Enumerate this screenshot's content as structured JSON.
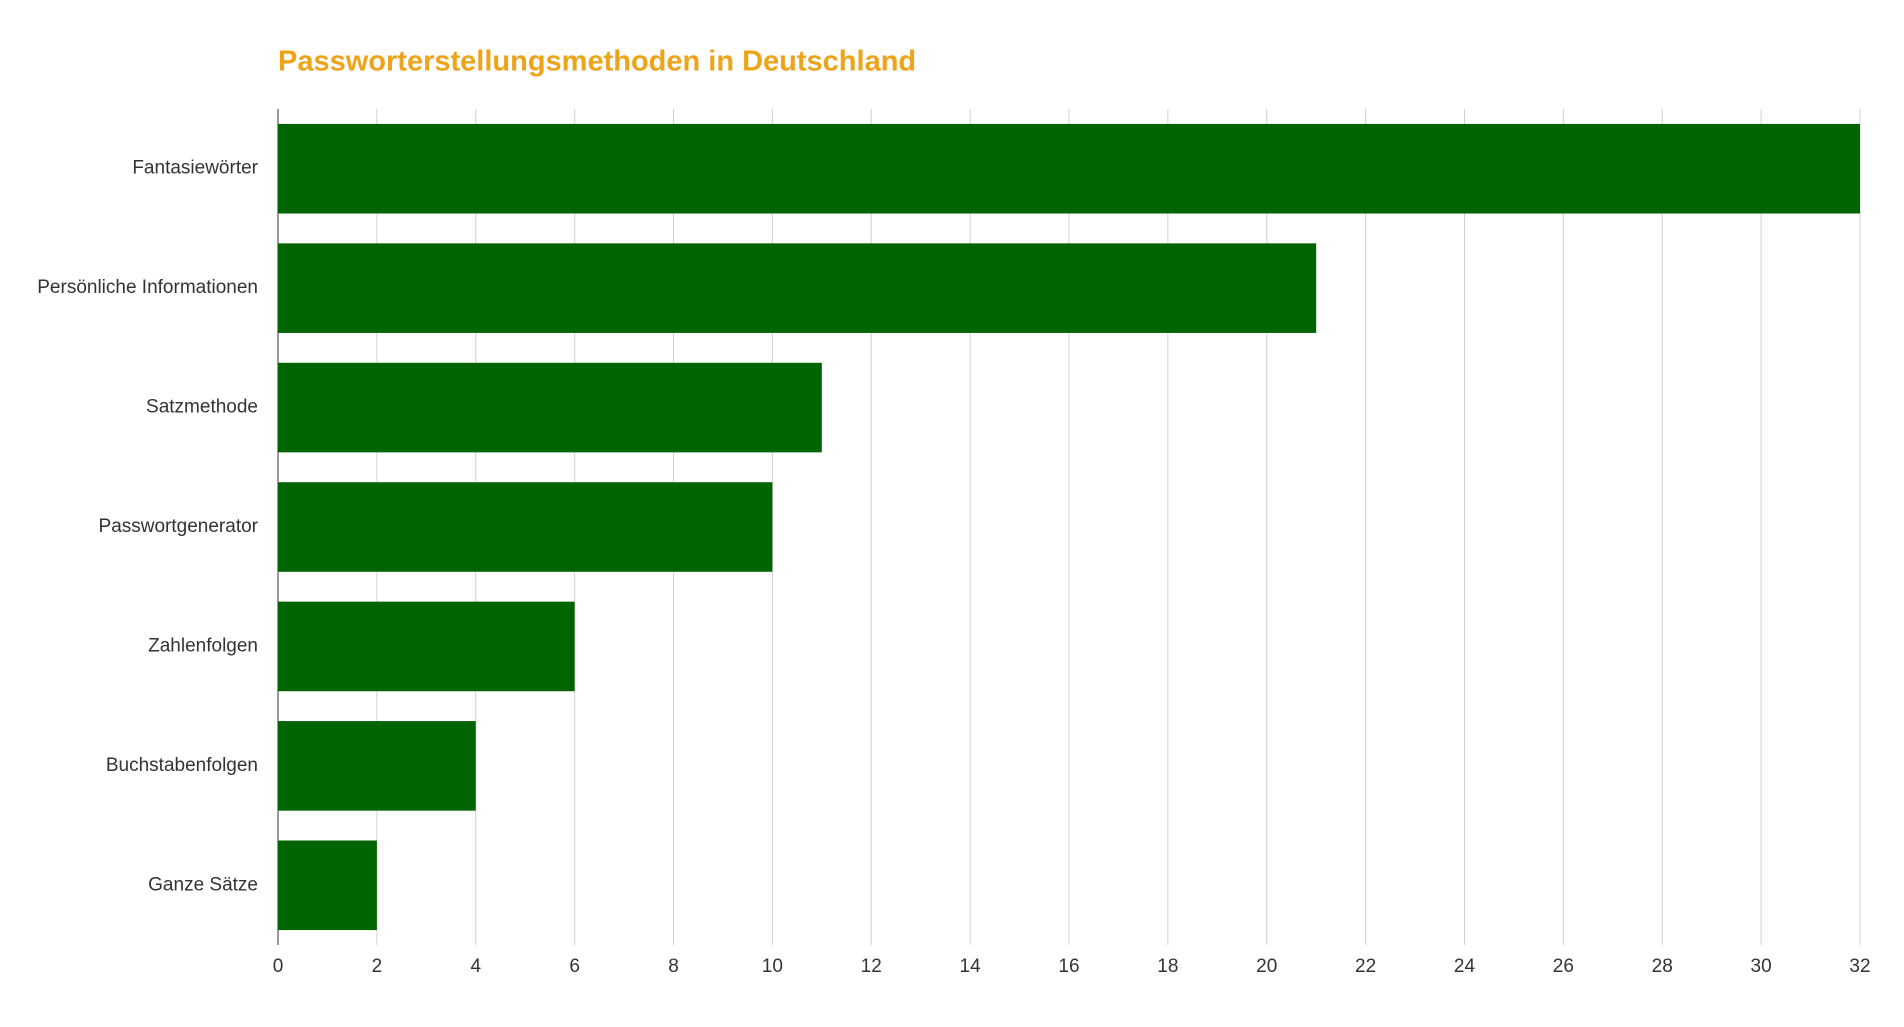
{
  "chart_data": {
    "type": "bar",
    "orientation": "horizontal",
    "title": "Passworterstellungsmethoden in Deutschland",
    "categories": [
      "Fantasiewörter",
      "Persönliche Informationen",
      "Satzmethode",
      "Passwortgenerator",
      "Zahlenfolgen",
      "Buchstabenfolgen",
      "Ganze Sätze"
    ],
    "values": [
      32,
      21,
      11,
      10,
      6,
      4,
      2
    ],
    "color": "#006400",
    "xlim": [
      0,
      32
    ],
    "xticks": [
      0,
      2,
      4,
      6,
      8,
      10,
      12,
      14,
      16,
      18,
      20,
      22,
      24,
      26,
      28,
      30,
      32
    ],
    "grid": true
  }
}
